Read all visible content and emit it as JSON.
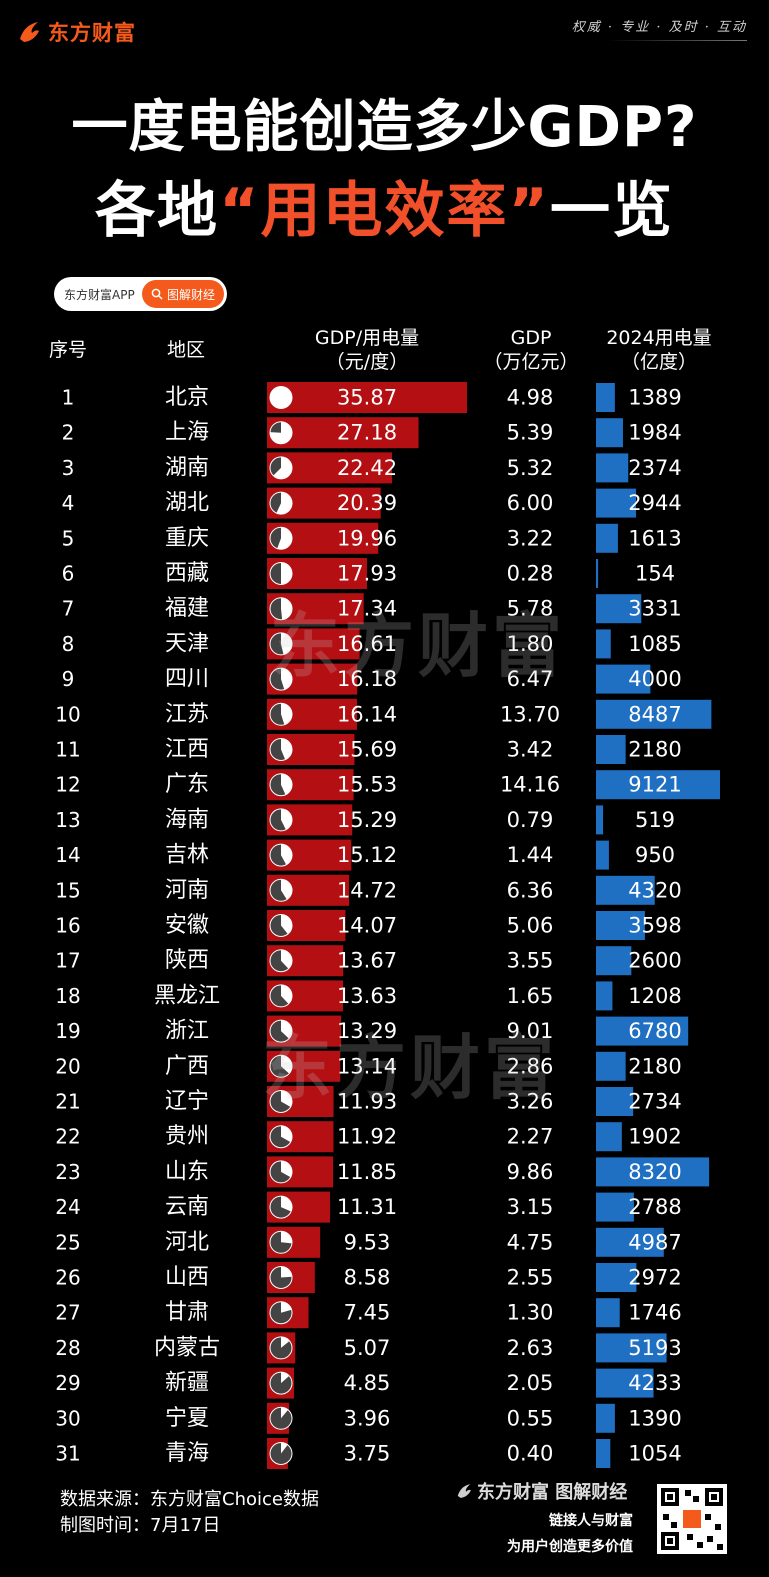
{
  "brand": {
    "logo_text": "东方财富",
    "slogan": "权威 · 专业 · 及时 · 互动"
  },
  "title": {
    "line1": "一度电能创造多少GDP?",
    "line2_pre": "各地",
    "line2_hl": "“用电效率”",
    "line2_post": "一览"
  },
  "app_pill": {
    "left": "东方财富APP",
    "right": "图解财经"
  },
  "watermark": "东方财富",
  "colors": {
    "red_bar": "#b40f12",
    "blue_bar": "#1f6fc2",
    "accent": "#f45a1c"
  },
  "chart_data": {
    "type": "table",
    "columns": {
      "idx": "序号",
      "region": "地区",
      "ratio_1": "GDP/用电量",
      "ratio_2": "（元/度）",
      "gdp_1": "GDP",
      "gdp_2": "（万亿元）",
      "elec_1": "2024用电量",
      "elec_2": "（亿度）"
    },
    "rows": [
      {
        "idx": "1",
        "region": "北京",
        "ratio": 35.87,
        "gdp": "4.98",
        "elec": 1389
      },
      {
        "idx": "2",
        "region": "上海",
        "ratio": 27.18,
        "gdp": "5.39",
        "elec": 1984
      },
      {
        "idx": "3",
        "region": "湖南",
        "ratio": 22.42,
        "gdp": "5.32",
        "elec": 2374
      },
      {
        "idx": "4",
        "region": "湖北",
        "ratio": 20.39,
        "gdp": "6.00",
        "elec": 2944
      },
      {
        "idx": "5",
        "region": "重庆",
        "ratio": 19.96,
        "gdp": "3.22",
        "elec": 1613
      },
      {
        "idx": "6",
        "region": "西藏",
        "ratio": 17.93,
        "gdp": "0.28",
        "elec": 154
      },
      {
        "idx": "7",
        "region": "福建",
        "ratio": 17.34,
        "gdp": "5.78",
        "elec": 3331
      },
      {
        "idx": "8",
        "region": "天津",
        "ratio": 16.61,
        "gdp": "1.80",
        "elec": 1085
      },
      {
        "idx": "9",
        "region": "四川",
        "ratio": 16.18,
        "gdp": "6.47",
        "elec": 4000
      },
      {
        "idx": "10",
        "region": "江苏",
        "ratio": 16.14,
        "gdp": "13.70",
        "elec": 8487
      },
      {
        "idx": "11",
        "region": "江西",
        "ratio": 15.69,
        "gdp": "3.42",
        "elec": 2180
      },
      {
        "idx": "12",
        "region": "广东",
        "ratio": 15.53,
        "gdp": "14.16",
        "elec": 9121
      },
      {
        "idx": "13",
        "region": "海南",
        "ratio": 15.29,
        "gdp": "0.79",
        "elec": 519
      },
      {
        "idx": "14",
        "region": "吉林",
        "ratio": 15.12,
        "gdp": "1.44",
        "elec": 950
      },
      {
        "idx": "15",
        "region": "河南",
        "ratio": 14.72,
        "gdp": "6.36",
        "elec": 4320
      },
      {
        "idx": "16",
        "region": "安徽",
        "ratio": 14.07,
        "gdp": "5.06",
        "elec": 3598
      },
      {
        "idx": "17",
        "region": "陕西",
        "ratio": 13.67,
        "gdp": "3.55",
        "elec": 2600
      },
      {
        "idx": "18",
        "region": "黑龙江",
        "ratio": 13.63,
        "gdp": "1.65",
        "elec": 1208
      },
      {
        "idx": "19",
        "region": "浙江",
        "ratio": 13.29,
        "gdp": "9.01",
        "elec": 6780
      },
      {
        "idx": "20",
        "region": "广西",
        "ratio": 13.14,
        "gdp": "2.86",
        "elec": 2180
      },
      {
        "idx": "21",
        "region": "辽宁",
        "ratio": 11.93,
        "gdp": "3.26",
        "elec": 2734
      },
      {
        "idx": "22",
        "region": "贵州",
        "ratio": 11.92,
        "gdp": "2.27",
        "elec": 1902
      },
      {
        "idx": "23",
        "region": "山东",
        "ratio": 11.85,
        "gdp": "9.86",
        "elec": 8320
      },
      {
        "idx": "24",
        "region": "云南",
        "ratio": 11.31,
        "gdp": "3.15",
        "elec": 2788
      },
      {
        "idx": "25",
        "region": "河北",
        "ratio": 9.53,
        "gdp": "4.75",
        "elec": 4987
      },
      {
        "idx": "26",
        "region": "山西",
        "ratio": 8.58,
        "gdp": "2.55",
        "elec": 2972
      },
      {
        "idx": "27",
        "region": "甘肃",
        "ratio": 7.45,
        "gdp": "1.30",
        "elec": 1746
      },
      {
        "idx": "28",
        "region": "内蒙古",
        "ratio": 5.07,
        "gdp": "2.63",
        "elec": 5193
      },
      {
        "idx": "29",
        "region": "新疆",
        "ratio": 4.85,
        "gdp": "2.05",
        "elec": 4233
      },
      {
        "idx": "30",
        "region": "宁夏",
        "ratio": 3.96,
        "gdp": "0.55",
        "elec": 1390
      },
      {
        "idx": "31",
        "region": "青海",
        "ratio": 3.75,
        "gdp": "0.40",
        "elec": 1054
      }
    ]
  },
  "footer": {
    "source": "数据来源：东方财富Choice数据",
    "date": "制图时间：7月17日",
    "brand_line1": "东方财富 图解财经",
    "brand_line2": "链接人与财富",
    "brand_line3": "为用户创造更多价值"
  }
}
